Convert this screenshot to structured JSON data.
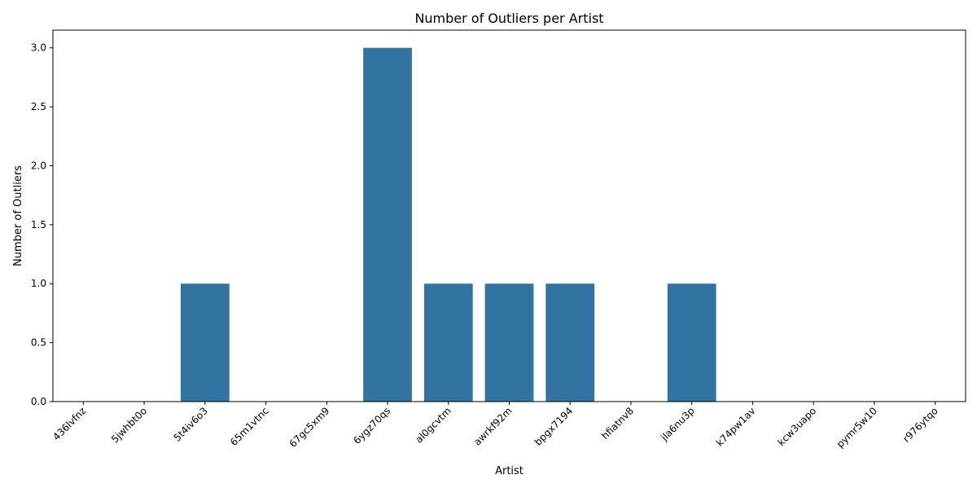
{
  "chart_data": {
    "type": "bar",
    "title": "Number of Outliers per Artist",
    "xlabel": "Artist",
    "ylabel": "Number of Outliers",
    "categories": [
      "436lvfnz",
      "5jwhbt0o",
      "5t4iv6o3",
      "65m1vtnc",
      "67gc5xm9",
      "6ygz70qs",
      "al0gcvtm",
      "awrkf92m",
      "bpgx7194",
      "hfiatnv8",
      "jla6nu3p",
      "k74pw1av",
      "kcw3uapo",
      "pymr5w10",
      "r976ytqo"
    ],
    "values": [
      0,
      0,
      1,
      0,
      0,
      3,
      1,
      1,
      1,
      0,
      1,
      0,
      0,
      0,
      0
    ],
    "ylim": [
      0,
      3.15
    ],
    "yticks": [
      "0.0",
      "0.5",
      "1.0",
      "1.5",
      "2.0",
      "2.5",
      "3.0"
    ],
    "bar_color": "#3274a1",
    "grid": false,
    "x_tick_rotation": "45 degrees"
  }
}
